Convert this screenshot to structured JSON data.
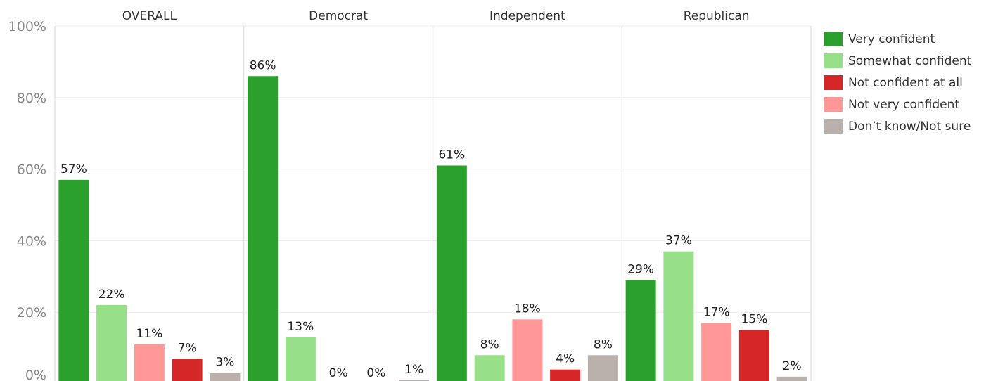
{
  "chart_data": {
    "type": "bar",
    "panels": [
      "OVERALL",
      "Democrat",
      "Independent",
      "Republican"
    ],
    "series": [
      {
        "name": "Very confident",
        "color": "#2ca02c",
        "values": [
          57,
          86,
          61,
          29
        ],
        "labels": [
          "57%",
          "86%",
          "61%",
          "29%"
        ]
      },
      {
        "name": "Somewhat confident",
        "color": "#98df8a",
        "values": [
          22,
          13,
          8,
          37
        ],
        "labels": [
          "22%",
          "13%",
          "8%",
          "37%"
        ]
      },
      {
        "name": "Not very confident",
        "color": "#ff9896",
        "values": [
          11,
          0,
          18,
          17
        ],
        "labels": [
          "11%",
          "0%",
          "18%",
          "17%"
        ]
      },
      {
        "name": "Not confident at all",
        "color": "#d62728",
        "values": [
          7,
          0,
          4,
          15
        ],
        "labels": [
          "7%",
          "0%",
          "4%",
          "15%"
        ]
      },
      {
        "name": "Don’t know/Not sure",
        "color": "#bab0ac",
        "values": [
          3,
          1,
          8,
          2
        ],
        "labels": [
          "3%",
          "1%",
          "8%",
          "2%"
        ]
      }
    ],
    "y_ticks": [
      "0%",
      "20%",
      "40%",
      "60%",
      "80%",
      "100%"
    ],
    "ylim": [
      0,
      100
    ],
    "grid": true,
    "legend_position": "right",
    "legend_order": [
      "Very confident",
      "Somewhat confident",
      "Not confident at all",
      "Not very confident",
      "Don’t know/Not sure"
    ]
  }
}
